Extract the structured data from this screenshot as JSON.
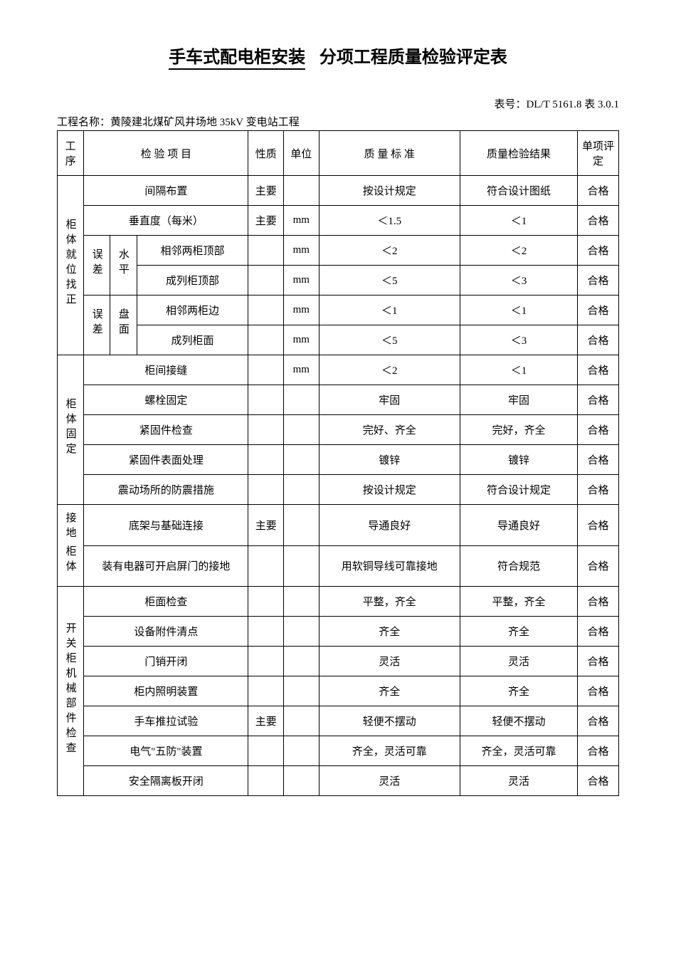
{
  "title": {
    "underlined": "手车式配电柜安装",
    "rest": "分项工程质量检验评定表"
  },
  "table_number": "表号：DL/T 5161.8  表 3.0.1",
  "project_name": "工程名称：黄陵建北煤矿风井场地 35kV 变电站工程",
  "headers": {
    "seq": "工序",
    "item": "检 验 项 目",
    "nature": "性质",
    "unit": "单位",
    "standard": "质 量 标 准",
    "result": "质量检验结果",
    "eval": "单项评定"
  },
  "sections": [
    {
      "name": "柜体就位找正",
      "rows": [
        {
          "sub1": "",
          "sub2": "",
          "item": "间隔布置",
          "nature": "主要",
          "unit": "",
          "standard": "按设计规定",
          "result": "符合设计图纸",
          "eval": "合格",
          "span": 2
        },
        {
          "sub1": "",
          "sub2": "",
          "item": "垂直度（每米）",
          "nature": "主要",
          "unit": "mm",
          "standard": "＜1.5",
          "result": "＜1",
          "eval": "合格",
          "span": 2
        },
        {
          "sub1": "误差",
          "sub1v": "水平",
          "item": "相邻两柜顶部",
          "nature": "",
          "unit": "mm",
          "standard": "＜2",
          "result": "＜2",
          "eval": "合格"
        },
        {
          "sub1": "",
          "sub1v": "",
          "item": "成列柜顶部",
          "nature": "",
          "unit": "mm",
          "standard": "＜5",
          "result": "＜3",
          "eval": "合格"
        },
        {
          "sub1": "误差",
          "sub1v": "盘面",
          "item": "相邻两柜边",
          "nature": "",
          "unit": "mm",
          "standard": "＜1",
          "result": "＜1",
          "eval": "合格"
        },
        {
          "sub1": "",
          "sub1v": "",
          "item": "成列柜面",
          "nature": "",
          "unit": "mm",
          "standard": "＜5",
          "result": "＜3",
          "eval": "合格"
        }
      ]
    },
    {
      "name": "柜体固定",
      "rows": [
        {
          "item": "柜间接缝",
          "nature": "",
          "unit": "mm",
          "standard": "＜2",
          "result": "＜1",
          "eval": "合格"
        },
        {
          "item": "螺栓固定",
          "nature": "",
          "unit": "",
          "standard": "牢固",
          "result": "牢固",
          "eval": "合格"
        },
        {
          "item": "紧固件检查",
          "nature": "",
          "unit": "",
          "standard": "完好、齐全",
          "result": "完好，齐全",
          "eval": "合格"
        },
        {
          "item": "紧固件表面处理",
          "nature": "",
          "unit": "",
          "standard": "镀锌",
          "result": "镀锌",
          "eval": "合格"
        },
        {
          "item": "震动场所的防震措施",
          "nature": "",
          "unit": "",
          "standard": "按设计规定",
          "result": "符合设计规定",
          "eval": "合格"
        }
      ]
    },
    {
      "name": "接地",
      "name2": "柜体",
      "rows": [
        {
          "item": "底架与基础连接",
          "nature": "主要",
          "unit": "",
          "standard": "导通良好",
          "result": "导通良好",
          "eval": "合格"
        },
        {
          "item": "装有电器可开启屏门的接地",
          "nature": "",
          "unit": "",
          "standard": "用软铜导线可靠接地",
          "result": "符合规范",
          "eval": "合格"
        }
      ]
    },
    {
      "name": "开关柜机械部件检查",
      "rows": [
        {
          "item": "柜面检查",
          "nature": "",
          "unit": "",
          "standard": "平整，齐全",
          "result": "平整，齐全",
          "eval": "合格"
        },
        {
          "item": "设备附件清点",
          "nature": "",
          "unit": "",
          "standard": "齐全",
          "result": "齐全",
          "eval": "合格"
        },
        {
          "item": "门销开闭",
          "nature": "",
          "unit": "",
          "standard": "灵活",
          "result": "灵活",
          "eval": "合格"
        },
        {
          "item": "柜内照明装置",
          "nature": "",
          "unit": "",
          "standard": "齐全",
          "result": "齐全",
          "eval": "合格"
        },
        {
          "item": "手车推拉试验",
          "nature": "主要",
          "unit": "",
          "standard": "轻便不摆动",
          "result": "轻便不摆动",
          "eval": "合格"
        },
        {
          "item": "电气\"五防\"装置",
          "nature": "",
          "unit": "",
          "standard": "齐全，灵活可靠",
          "result": "齐全，灵活可靠",
          "eval": "合格"
        },
        {
          "item": "安全隔离板开闭",
          "nature": "",
          "unit": "",
          "standard": "灵活",
          "result": "灵活",
          "eval": "合格"
        }
      ]
    }
  ],
  "sub_labels": {
    "wucha1": "误差",
    "shuiping": "水平",
    "wucha2": "误差",
    "panmian": "盘面"
  }
}
